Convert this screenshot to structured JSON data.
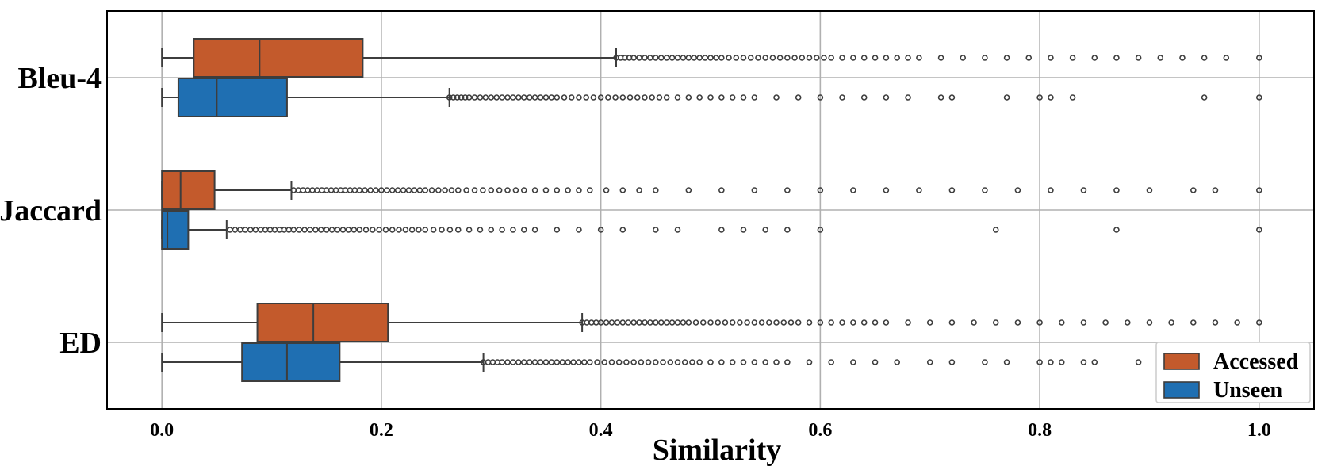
{
  "chart_data": {
    "type": "boxplot",
    "orientation": "horizontal",
    "xlabel": "Similarity",
    "xlim": [
      -0.05,
      1.05
    ],
    "xticks": [
      "0.0",
      "0.2",
      "0.4",
      "0.6",
      "0.8",
      "1.0"
    ],
    "grid": true,
    "legend_position": "bottom-right",
    "categories": [
      "Bleu-4",
      "Jaccard",
      "ED"
    ],
    "series": [
      {
        "name": "Accessed",
        "color": "#c35a2c",
        "boxes": [
          {
            "whisker_low": 0.0,
            "q1": 0.029,
            "median": 0.089,
            "q3": 0.183,
            "whisker_high": 0.414,
            "outliers": [
              0.414,
              0.43,
              0.45,
              0.47,
              0.49,
              0.51,
              0.53,
              0.55,
              0.57,
              0.59,
              0.61,
              0.63,
              0.65,
              0.67,
              0.69,
              0.71,
              0.73,
              0.75,
              0.77,
              0.79,
              0.81,
              0.83,
              0.85,
              0.87,
              0.89,
              0.91,
              0.93,
              0.95,
              0.97,
              1.0
            ]
          },
          {
            "whisker_low": 0.0,
            "q1": 0.0,
            "median": 0.017,
            "q3": 0.048,
            "whisker_high": 0.118,
            "outliers": [
              0.12,
              0.15,
              0.18,
              0.21,
              0.24,
              0.27,
              0.3,
              0.33,
              0.36,
              0.39,
              0.42,
              0.45,
              0.48,
              0.51,
              0.54,
              0.57,
              0.6,
              0.63,
              0.66,
              0.69,
              0.72,
              0.75,
              0.78,
              0.81,
              0.84,
              0.87,
              0.9,
              0.94,
              0.96,
              1.0
            ]
          },
          {
            "whisker_low": 0.0,
            "q1": 0.087,
            "median": 0.138,
            "q3": 0.206,
            "whisker_high": 0.383,
            "outliers": [
              0.383,
              0.4,
              0.42,
              0.44,
              0.46,
              0.48,
              0.5,
              0.52,
              0.54,
              0.56,
              0.58,
              0.6,
              0.62,
              0.64,
              0.66,
              0.68,
              0.7,
              0.72,
              0.74,
              0.76,
              0.78,
              0.8,
              0.82,
              0.84,
              0.86,
              0.88,
              0.9,
              0.92,
              0.94,
              0.96,
              0.98,
              1.0
            ]
          }
        ]
      },
      {
        "name": "Unseen",
        "color": "#1f6fb2",
        "boxes": [
          {
            "whisker_low": 0.0,
            "q1": 0.015,
            "median": 0.05,
            "q3": 0.114,
            "whisker_high": 0.262,
            "outliers": [
              0.262,
              0.28,
              0.3,
              0.32,
              0.34,
              0.36,
              0.38,
              0.4,
              0.42,
              0.44,
              0.46,
              0.48,
              0.5,
              0.52,
              0.54,
              0.56,
              0.58,
              0.6,
              0.62,
              0.64,
              0.66,
              0.68,
              0.71,
              0.72,
              0.77,
              0.8,
              0.81,
              0.83,
              0.95,
              1.0
            ]
          },
          {
            "whisker_low": 0.0,
            "q1": 0.0,
            "median": 0.005,
            "q3": 0.024,
            "whisker_high": 0.059,
            "outliers": [
              0.062,
              0.09,
              0.12,
              0.15,
              0.18,
              0.21,
              0.24,
              0.27,
              0.3,
              0.32,
              0.34,
              0.36,
              0.38,
              0.4,
              0.42,
              0.45,
              0.47,
              0.51,
              0.53,
              0.55,
              0.57,
              0.6,
              0.76,
              0.87,
              1.0
            ]
          },
          {
            "whisker_low": 0.0,
            "q1": 0.073,
            "median": 0.114,
            "q3": 0.162,
            "whisker_high": 0.293,
            "outliers": [
              0.293,
              0.31,
              0.33,
              0.35,
              0.37,
              0.39,
              0.41,
              0.43,
              0.45,
              0.47,
              0.49,
              0.51,
              0.53,
              0.55,
              0.57,
              0.59,
              0.61,
              0.63,
              0.65,
              0.67,
              0.7,
              0.72,
              0.75,
              0.77,
              0.8,
              0.81,
              0.82,
              0.84,
              0.85,
              0.89
            ]
          }
        ]
      }
    ]
  }
}
